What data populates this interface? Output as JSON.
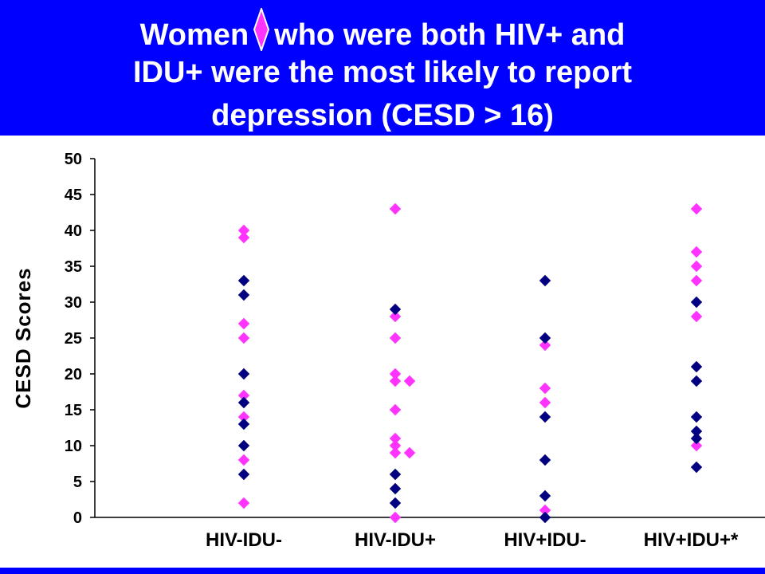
{
  "title": {
    "line1_before": "Women",
    "line1_after": "who were both HIV+ and",
    "line2": "IDU+ were the most likely to report",
    "line3": "depression (CESD > 16)",
    "icon": "diamond-icon",
    "icon_color": "#ff33ff"
  },
  "colors": {
    "header_bg": "#0000ff",
    "title_text": "#ffffff",
    "women_marker": "#ff33ff",
    "men_marker": "#000080"
  },
  "chart_data": {
    "type": "scatter",
    "title": "",
    "xlabel": "",
    "ylabel": "CESD Scores",
    "ylim": [
      0,
      50
    ],
    "yticks": [
      0,
      5,
      10,
      15,
      20,
      25,
      30,
      35,
      40,
      45,
      50
    ],
    "categories": [
      "HIV-IDU-",
      "HIV-IDU+",
      "HIV+IDU-",
      "HIV+IDU+*"
    ],
    "grid": false,
    "series": [
      {
        "color": "#ff33ff",
        "points": [
          [
            0,
            40
          ],
          [
            0,
            39
          ],
          [
            0,
            27
          ],
          [
            0,
            25
          ],
          [
            0,
            17
          ],
          [
            0,
            14
          ],
          [
            0,
            8
          ],
          [
            0,
            2
          ],
          [
            1,
            43
          ],
          [
            1,
            28
          ],
          [
            1,
            25
          ],
          [
            1,
            20
          ],
          [
            1,
            19
          ],
          [
            1.18,
            19
          ],
          [
            1,
            15
          ],
          [
            1,
            11
          ],
          [
            1,
            10
          ],
          [
            1,
            9
          ],
          [
            1.18,
            9
          ],
          [
            1,
            0
          ],
          [
            2,
            24
          ],
          [
            2,
            18
          ],
          [
            2,
            16
          ],
          [
            2,
            1
          ],
          [
            3,
            43
          ],
          [
            3,
            37
          ],
          [
            3,
            35
          ],
          [
            3,
            33
          ],
          [
            3,
            28
          ],
          [
            3,
            10
          ]
        ]
      },
      {
        "color": "#000080",
        "points": [
          [
            0,
            33
          ],
          [
            0,
            31
          ],
          [
            0,
            20
          ],
          [
            0,
            16
          ],
          [
            0,
            13
          ],
          [
            0,
            10
          ],
          [
            0,
            6
          ],
          [
            1,
            29
          ],
          [
            1,
            6
          ],
          [
            1,
            4
          ],
          [
            1,
            2
          ],
          [
            2,
            33
          ],
          [
            2,
            25
          ],
          [
            2,
            14
          ],
          [
            2,
            8
          ],
          [
            2,
            3
          ],
          [
            2,
            0
          ],
          [
            3,
            30
          ],
          [
            3,
            21
          ],
          [
            3,
            19
          ],
          [
            3,
            14
          ],
          [
            3,
            12
          ],
          [
            3,
            11
          ],
          [
            3,
            7
          ]
        ]
      }
    ]
  }
}
